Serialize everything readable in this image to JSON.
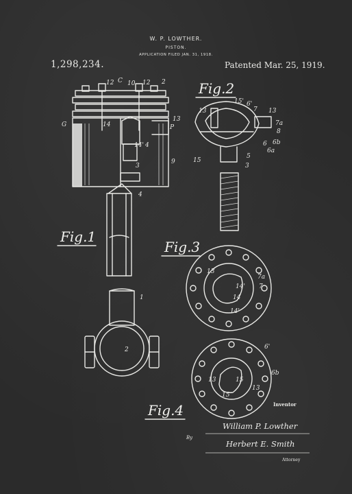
{
  "header": {
    "inventor_name": "W. P. LOWTHER.",
    "title": "PISTON.",
    "filed": "APPLICATION FILED JAN. 31, 1918.",
    "patent_number": "1,298,234.",
    "patent_date": "Patented Mar. 25, 1919."
  },
  "figures": {
    "fig1": "Fig.1",
    "fig2": "Fig.2",
    "fig3": "Fig.3",
    "fig4": "Fig.4"
  },
  "signature_block": {
    "inventor_label": "Inventor",
    "inventor_signature": "William P. Lowther",
    "by_label": "By",
    "attorney_signature": "Herbert E. Smith",
    "attorney_label": "Attorney"
  },
  "reference_numerals": {
    "n12a": "12",
    "c": "C",
    "n10": "10",
    "n12b": "12",
    "n2": "2",
    "n13a": "13",
    "p": "P",
    "g": "G",
    "n14": "14",
    "n4": "4",
    "n9": "9",
    "n3": "3",
    "n14p": "14'",
    "n4b": "4",
    "n1": "1",
    "n2b": "2",
    "f2_15p": "15'",
    "f2_6p": "6'",
    "f2_7": "7",
    "f2_13a": "13",
    "f2_13b": "13",
    "f2_7a": "7a",
    "f2_8": "8",
    "f2_6": "6",
    "f2_6b": "6b",
    "f2_6a": "6a",
    "f2_5": "5",
    "f2_15": "15",
    "f2_3": "3",
    "f3_13": "13",
    "f3_7a": "7a",
    "f3_7": "7",
    "f3_14p": "14'",
    "f3_14": "14",
    "f3_14pp": "14'",
    "f4_6p": "6'",
    "f4_6b": "6b",
    "f4_13": "13",
    "f4_15": "15",
    "f4_15b": "15",
    "f4_13b": "13"
  }
}
